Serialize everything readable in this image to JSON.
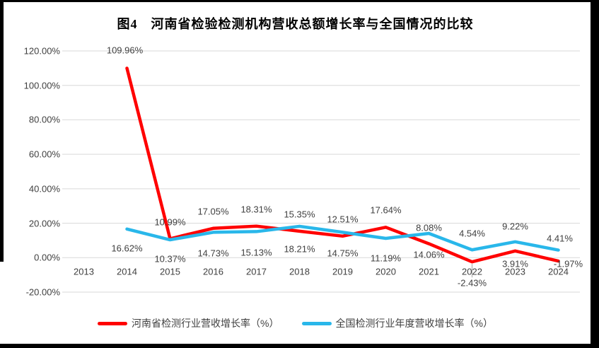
{
  "window": {
    "background": "#000000",
    "panel_background": "#ffffff"
  },
  "chart_data": {
    "type": "line",
    "title": "图4　河南省检验检测机构营收总额增长率与全国情况的比较",
    "x": [
      "2013",
      "2014",
      "2015",
      "2016",
      "2017",
      "2018",
      "2019",
      "2020",
      "2021",
      "2022",
      "2023",
      "2024"
    ],
    "ylim": [
      -20,
      120
    ],
    "ytick_step": 20,
    "ytick_labels": [
      "120.00%",
      "100.00%",
      "80.00%",
      "60.00%",
      "40.00%",
      "20.00%",
      "0.00%",
      "-20.00%"
    ],
    "grid": "horizontal",
    "gridline_color": "#d9d9d9",
    "text_color": "#404040",
    "legend_position": "bottom",
    "series": [
      {
        "id": "henan",
        "name": "河南省检测行业营收增长率（%）",
        "color": "#ff0000",
        "values": [
          null,
          109.96,
          10.99,
          17.05,
          18.31,
          15.35,
          12.51,
          17.64,
          8.08,
          -2.43,
          3.91,
          -1.97
        ],
        "labels": [
          null,
          "109.96%",
          "10.99%",
          "17.05%",
          "18.31%",
          "15.35%",
          "12.51%",
          "17.64%",
          "8.08%",
          "-2.43%",
          "3.91%",
          "-1.97%"
        ],
        "label_dx": [
          0,
          -3,
          0,
          0,
          0,
          0,
          0,
          0,
          0,
          0,
          0,
          14
        ],
        "label_dy": [
          0,
          -25,
          -24,
          -24,
          -24,
          -24,
          -24,
          -24,
          -23,
          30,
          18,
          4
        ]
      },
      {
        "id": "national",
        "name": "全国检测行业年度营收增长率（%）",
        "color": "#29b7ea",
        "values": [
          null,
          16.62,
          10.37,
          14.73,
          15.13,
          18.21,
          14.75,
          11.19,
          14.06,
          4.54,
          9.22,
          4.41
        ],
        "labels": [
          null,
          "16.62%",
          "10.37%",
          "14.73%",
          "15.13%",
          "18.21%",
          "14.75%",
          "11.19%",
          "14.06%",
          "4.54%",
          "9.22%",
          "4.41%"
        ],
        "label_dx": [
          0,
          0,
          0,
          0,
          0,
          0,
          0,
          0,
          0,
          0,
          0,
          2
        ],
        "label_dy": [
          0,
          27,
          27,
          30,
          30,
          32,
          30,
          28,
          30,
          -23,
          -22,
          -17
        ]
      }
    ],
    "leader_line": {
      "series_index": 0,
      "x_index": 9,
      "color": "#a6a6a6"
    }
  }
}
